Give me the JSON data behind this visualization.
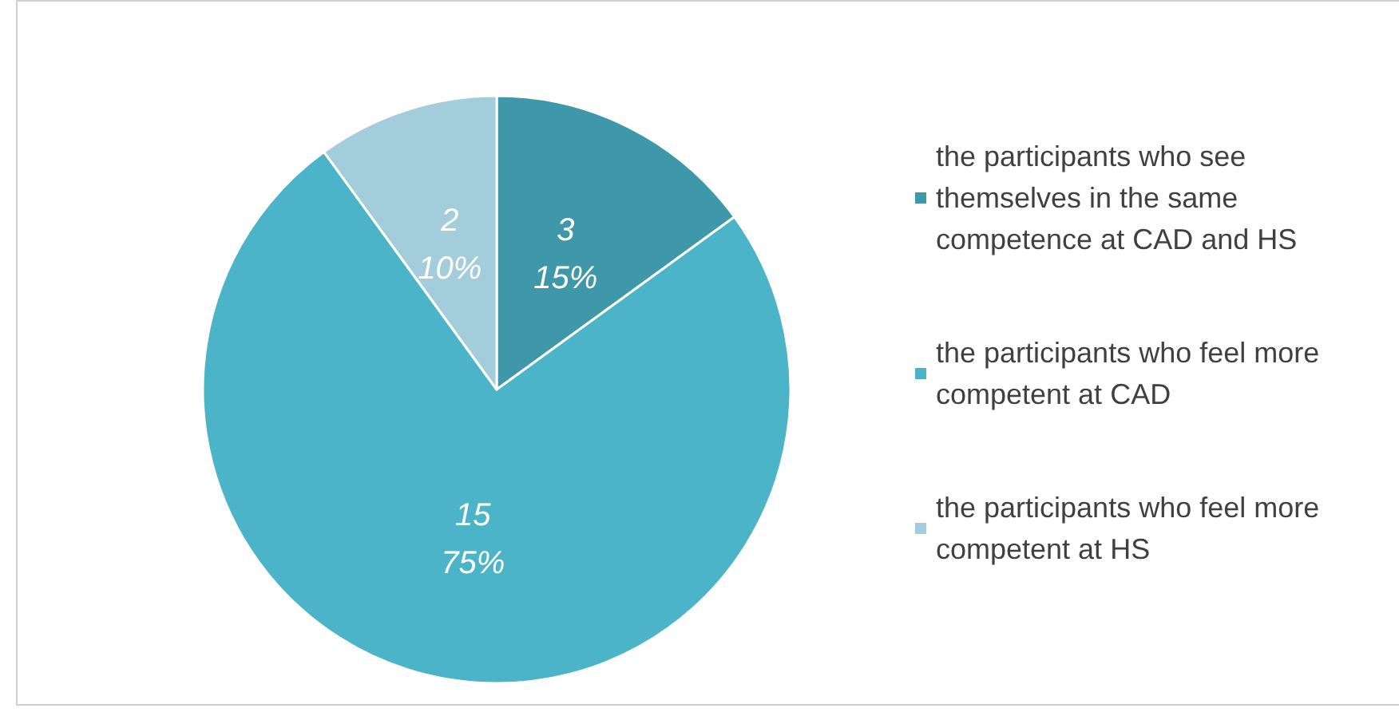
{
  "chart_data": {
    "type": "pie",
    "categories": [
      "the participants who see themselves in the same competence at CAD and HS",
      "the participants who feel more competent at CAD",
      "the participants who feel more competent at HS"
    ],
    "values": [
      3,
      15,
      2
    ],
    "colors": [
      "#3f98aa",
      "#4bb4c9",
      "#a4cddb"
    ],
    "value_labels": [
      "3\n15%",
      "15\n75%",
      "2\n10%"
    ],
    "legend": "right"
  }
}
